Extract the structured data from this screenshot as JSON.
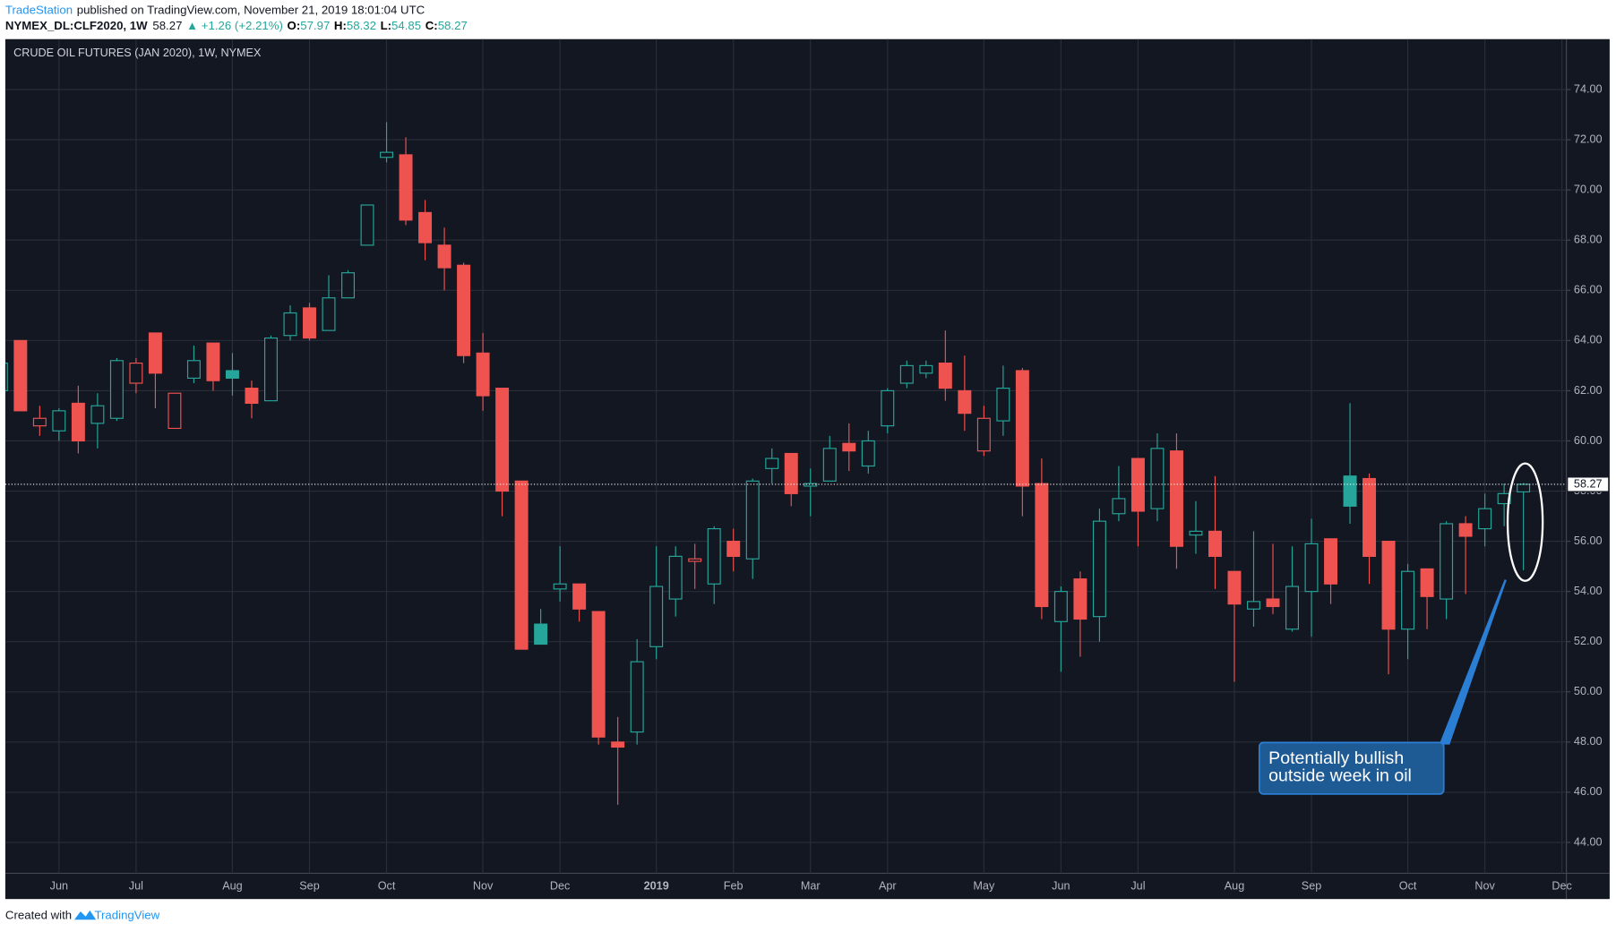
{
  "header": {
    "publisher": "TradeStation",
    "published": "published on TradingView.com, November 21, 2019 18:01:04 UTC",
    "symbol": "NYMEX_DL:CLF2020, 1W",
    "last": "58.27",
    "change": "▲ +1.26 (+2.21%)",
    "ohlc": [
      {
        "key": "O:",
        "value": "57.97"
      },
      {
        "key": "H:",
        "value": "58.32"
      },
      {
        "key": "L:",
        "value": "54.85"
      },
      {
        "key": "C:",
        "value": "58.27"
      }
    ]
  },
  "chart_data": {
    "type": "candlestick",
    "title": "CRUDE OIL FUTURES (JAN 2020), 1W, NYMEX",
    "categories": [
      null,
      null,
      null,
      "Jun",
      null,
      null,
      null,
      "Jul",
      null,
      null,
      null,
      null,
      "Aug",
      null,
      null,
      null,
      "Sep",
      null,
      null,
      null,
      "Oct",
      null,
      null,
      null,
      null,
      "Nov",
      null,
      null,
      null,
      "Dec",
      null,
      null,
      null,
      null,
      "2019",
      null,
      null,
      null,
      "Feb",
      null,
      null,
      null,
      "Mar",
      null,
      null,
      null,
      "Apr",
      null,
      null,
      null,
      null,
      "May",
      null,
      null,
      null,
      "Jun",
      null,
      null,
      null,
      "Jul",
      null,
      null,
      null,
      null,
      "Aug",
      null,
      null,
      null,
      "Sep",
      null,
      null,
      null,
      null,
      "Oct",
      null,
      null,
      null,
      "Nov",
      null,
      null,
      null,
      "Dec"
    ],
    "open": [
      62.0,
      64.0,
      60.6,
      60.4,
      61.5,
      60.7,
      60.9,
      62.3,
      64.3,
      60.5,
      62.5,
      63.9,
      62.8,
      62.1,
      61.6,
      64.2,
      65.3,
      64.4,
      65.7,
      67.8,
      71.3,
      71.4,
      69.1,
      67.8,
      67.0,
      63.5,
      62.1,
      58.4,
      52.7,
      54.1,
      54.3,
      53.2,
      48.0,
      48.4,
      51.8,
      53.7,
      55.2,
      54.3,
      56.0,
      55.3,
      58.9,
      59.5,
      58.2,
      58.4,
      59.9,
      59.0,
      60.6,
      62.3,
      62.7,
      63.1,
      62.0,
      59.6,
      60.8,
      62.8,
      58.3,
      52.8,
      54.5,
      53.0,
      57.1,
      59.3,
      57.3,
      59.6,
      56.25,
      56.4,
      54.8,
      53.3,
      53.7,
      52.5,
      54.0,
      56.1,
      58.6,
      58.5,
      56.0,
      52.5,
      54.9,
      53.7,
      56.7,
      56.5,
      57.5,
      57.97,
      null,
      null
    ],
    "high": [
      63.3,
      64.0,
      61.4,
      61.3,
      62.2,
      61.9,
      63.3,
      63.3,
      64.3,
      61.9,
      63.8,
      63.9,
      63.5,
      62.4,
      64.2,
      65.4,
      65.5,
      66.6,
      66.8,
      69.4,
      72.7,
      72.1,
      69.6,
      68.5,
      67.1,
      64.3,
      62.1,
      58.4,
      53.3,
      55.8,
      54.3,
      53.2,
      49.0,
      52.1,
      55.8,
      55.8,
      55.9,
      56.6,
      56.5,
      58.5,
      59.7,
      59.5,
      58.9,
      60.2,
      60.7,
      60.4,
      62.1,
      63.2,
      63.2,
      64.4,
      63.4,
      61.4,
      63.0,
      62.9,
      59.3,
      54.2,
      54.8,
      57.3,
      59.0,
      59.3,
      60.3,
      60.3,
      57.6,
      58.6,
      54.8,
      56.4,
      55.9,
      55.8,
      56.9,
      56.1,
      61.5,
      58.7,
      56.0,
      55.1,
      54.9,
      56.8,
      57.0,
      57.9,
      58.3,
      58.32,
      null,
      null
    ],
    "low": [
      61.8,
      61.2,
      60.2,
      60.0,
      59.5,
      59.7,
      60.8,
      61.9,
      61.3,
      60.5,
      62.3,
      62.0,
      61.8,
      60.9,
      61.6,
      64.0,
      64.0,
      64.4,
      65.7,
      67.8,
      71.1,
      68.6,
      67.2,
      66.0,
      63.1,
      61.2,
      57.0,
      51.7,
      51.9,
      53.6,
      52.8,
      47.9,
      45.5,
      47.9,
      51.3,
      53.0,
      54.1,
      53.5,
      54.8,
      54.5,
      58.3,
      57.4,
      57.0,
      58.4,
      58.8,
      58.7,
      60.3,
      62.1,
      62.5,
      61.6,
      60.4,
      59.4,
      60.2,
      57.0,
      52.9,
      50.8,
      51.4,
      52.0,
      56.8,
      55.8,
      56.8,
      54.9,
      55.5,
      54.1,
      50.4,
      52.6,
      53.1,
      52.4,
      52.2,
      53.5,
      56.7,
      54.3,
      50.7,
      51.3,
      52.5,
      52.9,
      53.9,
      55.8,
      56.6,
      54.85,
      null,
      null
    ],
    "close": [
      63.1,
      61.2,
      60.9,
      61.2,
      60.0,
      61.4,
      63.2,
      63.1,
      62.7,
      61.9,
      63.2,
      62.4,
      62.5,
      61.5,
      64.1,
      65.1,
      64.1,
      65.7,
      66.7,
      69.4,
      71.5,
      68.8,
      67.9,
      66.9,
      63.4,
      61.8,
      58.0,
      51.7,
      51.9,
      54.3,
      53.3,
      48.2,
      47.8,
      51.2,
      54.2,
      55.4,
      55.3,
      56.5,
      55.4,
      58.4,
      59.3,
      57.9,
      58.3,
      59.7,
      59.6,
      60.0,
      62.0,
      63.0,
      63.0,
      62.1,
      61.1,
      60.9,
      62.1,
      58.2,
      53.4,
      54.0,
      52.9,
      56.8,
      57.7,
      57.2,
      59.7,
      55.8,
      56.4,
      55.4,
      53.5,
      53.6,
      53.4,
      54.2,
      55.9,
      54.3,
      57.4,
      55.4,
      52.5,
      54.8,
      53.8,
      56.7,
      56.2,
      57.3,
      57.9,
      58.27,
      null,
      null
    ],
    "up_color": "#26a69a",
    "down_color": "#ef5350",
    "ylim": [
      42.77,
      76.01
    ],
    "yticks": [
      {
        "value": 44,
        "label": "44.00"
      },
      {
        "value": 46,
        "label": "46.00"
      },
      {
        "value": 48,
        "label": "48.00"
      },
      {
        "value": 50,
        "label": "50.00"
      },
      {
        "value": 52,
        "label": "52.00"
      },
      {
        "value": 54,
        "label": "54.00"
      },
      {
        "value": 56,
        "label": "56.00"
      },
      {
        "value": 58,
        "label": "58.00"
      },
      {
        "value": 60,
        "label": "60.00"
      },
      {
        "value": 62,
        "label": "62.00"
      },
      {
        "value": 64,
        "label": "64.00"
      },
      {
        "value": 66,
        "label": "66.00"
      },
      {
        "value": 68,
        "label": "68.00"
      },
      {
        "value": 70,
        "label": "70.00"
      },
      {
        "value": 72,
        "label": "72.00"
      },
      {
        "value": 74,
        "label": "74.00"
      }
    ],
    "grid": true,
    "last_price": 58.27,
    "annotation": [
      "Potentially bullish",
      "outside week in oil"
    ]
  },
  "footer": {
    "created": "Created with",
    "brand": "TradingView"
  }
}
